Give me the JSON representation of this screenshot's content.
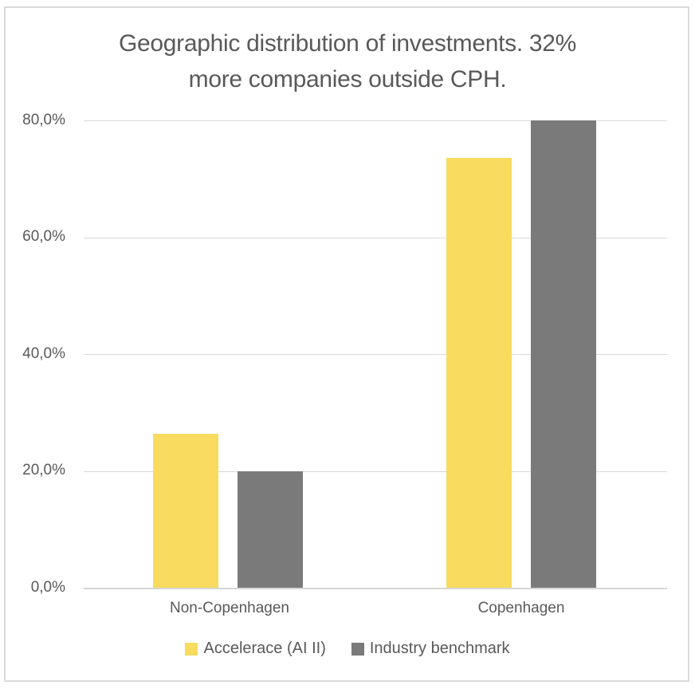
{
  "chart_data": {
    "type": "bar",
    "title": "Geographic distribution of investments. 32% more companies outside CPH.",
    "title_lines": [
      "Geographic distribution of investments. 32%",
      "more companies outside CPH."
    ],
    "categories": [
      "Non-Copenhagen",
      "Copenhagen"
    ],
    "series": [
      {
        "name": "Accelerace (AI II)",
        "color": "#F8DB5F",
        "values": [
          26.4,
          73.6
        ]
      },
      {
        "name": "Industry benchmark",
        "color": "#7A7A7A",
        "values": [
          20.0,
          80.0
        ]
      }
    ],
    "xlabel": "",
    "ylabel": "",
    "ylim": [
      0,
      80
    ],
    "ytick_step": 20,
    "ytick_labels": [
      "0,0%",
      "20,0%",
      "40,0%",
      "60,0%",
      "80,0%"
    ],
    "value_format": "percent_comma_decimal",
    "grid": true,
    "legend_position": "bottom",
    "colors": {
      "text": "#595959",
      "gridline": "#D9D9D9",
      "frame_border": "#DADADA",
      "background": "#FFFFFF"
    }
  }
}
